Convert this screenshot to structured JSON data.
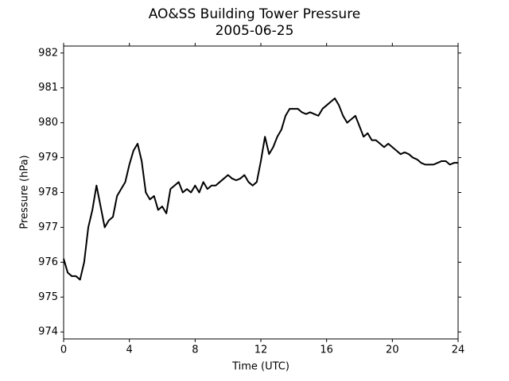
{
  "chart_data": {
    "type": "line",
    "title": "AO&SS Building Tower Pressure",
    "subtitle": "2005-06-25",
    "xlabel": "Time (UTC)",
    "ylabel": "Pressure (hPa)",
    "xlim": [
      0,
      24
    ],
    "xticks": [
      0,
      4,
      8,
      12,
      16,
      20,
      24
    ],
    "ylim": [
      973.8,
      982.2
    ],
    "yticks": [
      974,
      975,
      976,
      977,
      978,
      979,
      980,
      981,
      982
    ],
    "x": [
      0,
      0.25,
      0.5,
      0.75,
      1,
      1.25,
      1.5,
      1.75,
      2,
      2.25,
      2.5,
      2.75,
      3,
      3.25,
      3.5,
      3.75,
      4,
      4.25,
      4.5,
      4.75,
      5,
      5.25,
      5.5,
      5.75,
      6,
      6.25,
      6.5,
      6.75,
      7,
      7.25,
      7.5,
      7.75,
      8,
      8.25,
      8.5,
      8.75,
      9,
      9.25,
      9.5,
      9.75,
      10,
      10.25,
      10.5,
      10.75,
      11,
      11.25,
      11.5,
      11.75,
      12,
      12.25,
      12.5,
      12.75,
      13,
      13.25,
      13.5,
      13.75,
      14,
      14.25,
      14.5,
      14.75,
      15,
      15.25,
      15.5,
      15.75,
      16,
      16.25,
      16.5,
      16.75,
      17,
      17.25,
      17.5,
      17.75,
      18,
      18.25,
      18.5,
      18.75,
      19,
      19.25,
      19.5,
      19.75,
      20,
      20.25,
      20.5,
      20.75,
      21,
      21.25,
      21.5,
      21.75,
      22,
      22.25,
      22.5,
      22.75,
      23,
      23.25,
      23.5,
      23.75,
      24
    ],
    "series": [
      {
        "color": "#000000",
        "values": [
          976.1,
          975.7,
          975.6,
          975.6,
          975.5,
          976.0,
          977.0,
          977.5,
          978.2,
          977.6,
          977.0,
          977.2,
          977.3,
          977.9,
          978.1,
          978.3,
          978.8,
          979.2,
          979.4,
          978.9,
          978.0,
          977.8,
          977.9,
          977.5,
          977.6,
          977.4,
          978.1,
          978.2,
          978.3,
          978.0,
          978.1,
          978.0,
          978.2,
          978.0,
          978.3,
          978.1,
          978.2,
          978.2,
          978.3,
          978.4,
          978.5,
          978.4,
          978.35,
          978.4,
          978.5,
          978.3,
          978.2,
          978.3,
          978.9,
          979.6,
          979.1,
          979.3,
          979.6,
          979.8,
          980.2,
          980.4,
          980.4,
          980.4,
          980.3,
          980.25,
          980.3,
          980.25,
          980.2,
          980.4,
          980.5,
          980.6,
          980.7,
          980.5,
          980.2,
          980.0,
          980.1,
          980.2,
          979.9,
          979.6,
          979.7,
          979.5,
          979.5,
          979.4,
          979.3,
          979.4,
          979.3,
          979.2,
          979.1,
          979.15,
          979.1,
          979.0,
          978.95,
          978.85,
          978.8,
          978.8,
          978.8,
          978.85,
          978.9,
          978.9,
          978.8,
          978.85,
          978.85
        ]
      }
    ]
  }
}
